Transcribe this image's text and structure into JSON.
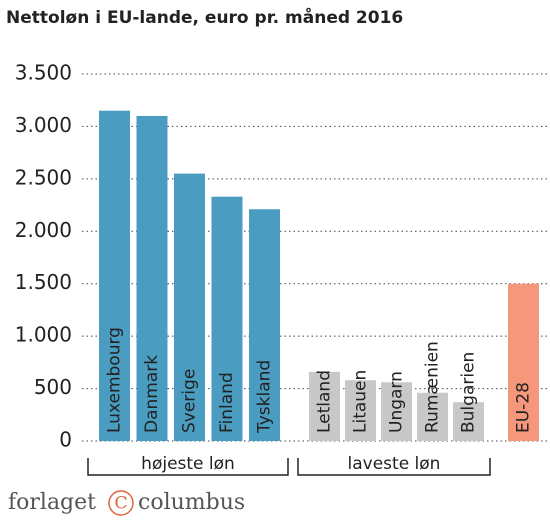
{
  "chart_data": {
    "type": "bar",
    "title": "Nettoløn i EU-lande, euro pr. måned 2016",
    "categories": [
      "Luxembourg",
      "Danmark",
      "Sverige",
      "Finland",
      "Tyskland",
      "Letland",
      "Litauen",
      "Ungarn",
      "Rumænien",
      "Bulgarien",
      "EU-28"
    ],
    "values": [
      3150,
      3100,
      2550,
      2330,
      2210,
      660,
      580,
      560,
      460,
      370,
      1500
    ],
    "colors": [
      "#4a9cc1",
      "#4a9cc1",
      "#4a9cc1",
      "#4a9cc1",
      "#4a9cc1",
      "#c8c8c8",
      "#c8c8c8",
      "#c8c8c8",
      "#c8c8c8",
      "#c8c8c8",
      "#f4977a"
    ],
    "ylim": [
      0,
      3500
    ],
    "yticks": [
      0,
      500,
      {
        "value": 1000,
        "label": "1.000"
      },
      {
        "value": 1500,
        "label": "1.500"
      },
      {
        "value": 2000,
        "label": "2.000"
      },
      {
        "value": 2500,
        "label": "2.500"
      },
      {
        "value": 3000,
        "label": "3.000"
      },
      {
        "value": 3500,
        "label": "3.500"
      }
    ],
    "grid": true,
    "groups": [
      "højeste løn",
      "laveste løn"
    ]
  },
  "footer": {
    "left": "forlaget",
    "mark": "C",
    "right": "columbus"
  }
}
